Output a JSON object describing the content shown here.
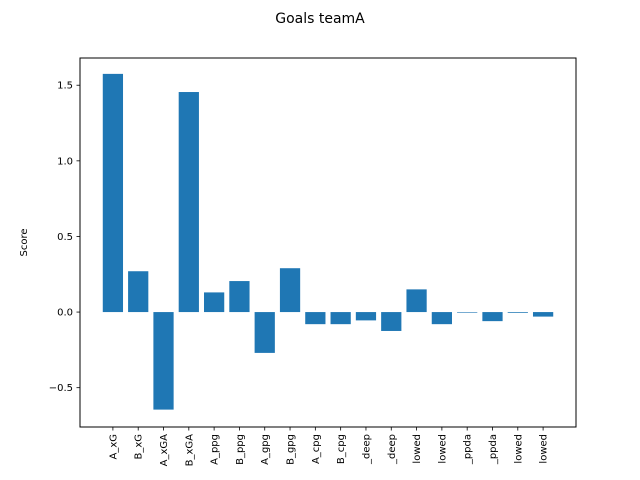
{
  "figure": {
    "suptitle": "Goals teamA"
  },
  "chart_data": {
    "type": "bar",
    "title": "Goals teamA",
    "xlabel": "",
    "ylabel": "Score",
    "categories": [
      "A_xG",
      "B_xG",
      "A_xGA",
      "B_xGA",
      "A_ppg",
      "B_ppg",
      "A_gpg",
      "B_gpg",
      "A_cpg",
      "B_cpg",
      "_deep",
      "_deep",
      "lowed",
      "lowed",
      "_ppda",
      "_ppda",
      "lowed",
      "lowed"
    ],
    "values": [
      1.575,
      0.27,
      -0.645,
      1.455,
      0.13,
      0.205,
      -0.27,
      0.29,
      -0.08,
      -0.08,
      -0.055,
      -0.125,
      0.15,
      -0.08,
      0.0,
      -0.06,
      -0.005,
      -0.03
    ],
    "ylim": [
      -0.76,
      1.68
    ],
    "yticks": [
      -0.5,
      0.0,
      0.5,
      1.0,
      1.5
    ],
    "ytick_labels": [
      "−0.5",
      "0.0",
      "0.5",
      "1.0",
      "1.5"
    ],
    "grid": false,
    "legend": "none",
    "colors": {
      "bar": "#1f77b4",
      "axes": "#000000",
      "background": "#ffffff"
    }
  }
}
